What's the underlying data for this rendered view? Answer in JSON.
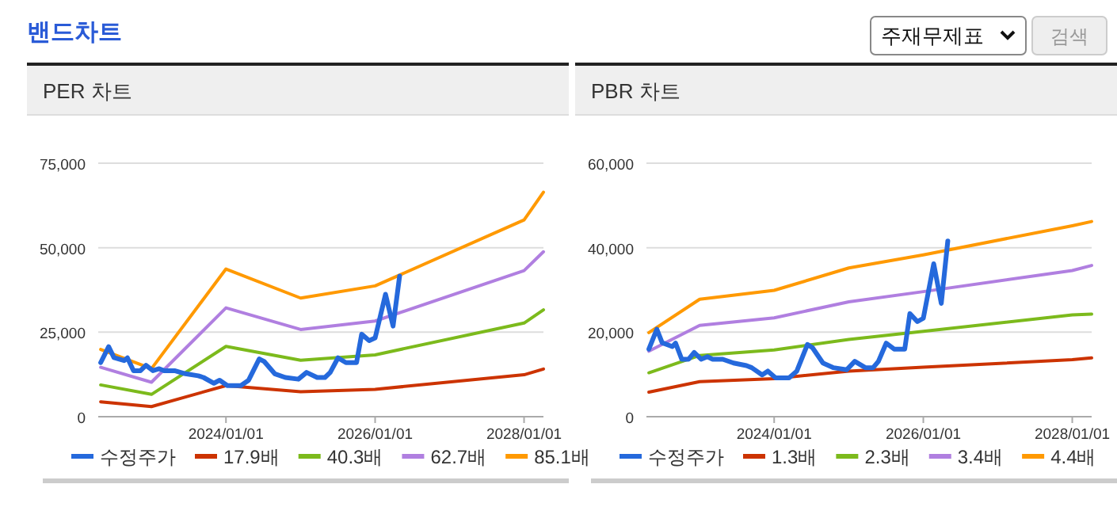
{
  "chart_data": [
    {
      "type": "line",
      "title": "PER 차트",
      "annotations": [
        "밴드차트",
        "주재무제표",
        "검색"
      ],
      "legend": "bottom",
      "grid": "y",
      "xlim": [
        "2022-04-15",
        "2028-04-05"
      ],
      "ylim": [
        0,
        75000
      ],
      "xticks": [
        {
          "value": "2024-01-01",
          "label": "2024/01/01"
        },
        {
          "value": "2026-01-01",
          "label": "2026/01/01"
        },
        {
          "value": "2028-01-01",
          "label": "2028/01/01"
        }
      ],
      "yticks": [
        {
          "value": 0,
          "label": "0"
        },
        {
          "value": 25000,
          "label": "25,000"
        },
        {
          "value": 50000,
          "label": "50,000"
        },
        {
          "value": 75000,
          "label": "75,000"
        }
      ],
      "series": [
        {
          "name": "수정주가",
          "color": "#2569dc",
          "x": [
            "2022-04-27",
            "2022-06-05",
            "2022-07-01",
            "2022-08-20",
            "2022-09-05",
            "2022-10-05",
            "2022-11-08",
            "2022-12-05",
            "2023-01-08",
            "2023-02-08",
            "2023-03-04",
            "2023-04-24",
            "2023-06-16",
            "2023-08-18",
            "2023-09-13",
            "2023-11-03",
            "2023-12-01",
            "2024-01-08",
            "2024-03-14",
            "2024-04-21",
            "2024-06-12",
            "2024-07-07",
            "2024-08-27",
            "2024-10-18",
            "2024-12-21",
            "2025-01-30",
            "2025-03-23",
            "2025-04-30",
            "2025-05-26",
            "2025-07-03",
            "2025-08-11",
            "2025-10-02",
            "2025-10-27",
            "2025-12-03",
            "2026-01-01",
            "2026-02-21",
            "2026-03-30",
            "2026-05-01"
          ],
          "values": [
            16000,
            20700,
            17500,
            16600,
            17400,
            13600,
            13600,
            15200,
            13600,
            14200,
            13600,
            13600,
            12700,
            12100,
            11600,
            9900,
            10800,
            9200,
            9200,
            10800,
            17100,
            16300,
            12700,
            11600,
            11100,
            13100,
            11600,
            11600,
            13100,
            17400,
            16000,
            16000,
            24400,
            22500,
            23300,
            36200,
            26800,
            41600
          ]
        },
        {
          "name": "17.9배",
          "color": "#cc3300",
          "x": [
            "2022-04-27",
            "2023-01-01",
            "2024-01-01",
            "2025-01-01",
            "2026-01-01",
            "2028-01-01",
            "2028-04-05"
          ],
          "values": [
            4400,
            3000,
            9200,
            7400,
            8100,
            12400,
            14100
          ]
        },
        {
          "name": "40.3배",
          "color": "#7cba1c",
          "x": [
            "2022-04-27",
            "2023-01-01",
            "2024-01-01",
            "2025-01-01",
            "2026-01-01",
            "2028-01-01",
            "2028-04-05"
          ],
          "values": [
            9400,
            6600,
            20800,
            16700,
            18300,
            27700,
            31600
          ]
        },
        {
          "name": "62.7배",
          "color": "#b07fe0",
          "x": [
            "2022-04-27",
            "2023-01-01",
            "2024-01-01",
            "2025-01-01",
            "2026-01-01",
            "2028-01-01",
            "2028-04-05"
          ],
          "values": [
            14600,
            10200,
            32200,
            25800,
            28300,
            43200,
            48800
          ]
        },
        {
          "name": "85.1배",
          "color": "#ff9900",
          "x": [
            "2022-04-27",
            "2023-01-01",
            "2024-01-01",
            "2025-01-01",
            "2026-01-01",
            "2028-01-01",
            "2028-04-05"
          ],
          "values": [
            19900,
            14200,
            43700,
            35100,
            38700,
            58200,
            66400
          ]
        }
      ]
    },
    {
      "type": "line",
      "title": "PBR 차트",
      "legend": "bottom",
      "grid": "y",
      "xlim": [
        "2022-04-15",
        "2028-04-05"
      ],
      "ylim": [
        0,
        60000
      ],
      "xticks": [
        {
          "value": "2024-01-01",
          "label": "2024/01/01"
        },
        {
          "value": "2026-01-01",
          "label": "2026/01/01"
        },
        {
          "value": "2028-01-01",
          "label": "2028/01/01"
        }
      ],
      "yticks": [
        {
          "value": 0,
          "label": "0"
        },
        {
          "value": 20000,
          "label": "20,000"
        },
        {
          "value": 40000,
          "label": "40,000"
        },
        {
          "value": 60000,
          "label": "60,000"
        }
      ],
      "series": [
        {
          "name": "수정주가",
          "color": "#2569dc",
          "x": [
            "2022-04-27",
            "2022-06-05",
            "2022-07-01",
            "2022-08-20",
            "2022-09-05",
            "2022-10-05",
            "2022-11-08",
            "2022-12-05",
            "2023-01-08",
            "2023-02-08",
            "2023-03-04",
            "2023-04-24",
            "2023-06-16",
            "2023-08-18",
            "2023-09-13",
            "2023-11-03",
            "2023-12-01",
            "2024-01-08",
            "2024-03-14",
            "2024-04-21",
            "2024-06-12",
            "2024-07-07",
            "2024-08-27",
            "2024-10-18",
            "2024-12-21",
            "2025-01-30",
            "2025-03-23",
            "2025-04-30",
            "2025-05-26",
            "2025-07-03",
            "2025-08-11",
            "2025-10-02",
            "2025-10-27",
            "2025-12-03",
            "2026-01-01",
            "2026-02-21",
            "2026-03-30",
            "2026-05-01"
          ],
          "values": [
            16000,
            20700,
            17500,
            16600,
            17400,
            13600,
            13600,
            15200,
            13600,
            14200,
            13600,
            13600,
            12700,
            12100,
            11600,
            9900,
            10800,
            9200,
            9200,
            10800,
            17100,
            16300,
            12700,
            11600,
            11100,
            13100,
            11600,
            11600,
            13100,
            17400,
            16000,
            16000,
            24400,
            22500,
            23300,
            36200,
            26800,
            41600
          ]
        },
        {
          "name": "1.3배",
          "color": "#cc3300",
          "x": [
            "2022-04-27",
            "2023-01-01",
            "2024-01-01",
            "2025-01-01",
            "2026-01-01",
            "2028-01-01",
            "2028-04-05"
          ],
          "values": [
            5800,
            8300,
            9000,
            10800,
            11700,
            13500,
            13900
          ]
        },
        {
          "name": "2.3배",
          "color": "#7cba1c",
          "x": [
            "2022-04-27",
            "2023-01-01",
            "2024-01-01",
            "2025-01-01",
            "2026-01-01",
            "2028-01-01",
            "2028-04-05"
          ],
          "values": [
            10400,
            14500,
            15800,
            18300,
            20200,
            24100,
            24300
          ]
        },
        {
          "name": "3.4배",
          "color": "#b07fe0",
          "x": [
            "2022-04-27",
            "2023-01-01",
            "2024-01-01",
            "2025-01-01",
            "2026-01-01",
            "2028-01-01",
            "2028-04-05"
          ],
          "values": [
            15500,
            21600,
            23400,
            27200,
            29600,
            34600,
            35800
          ]
        },
        {
          "name": "4.4배",
          "color": "#ff9900",
          "x": [
            "2022-04-27",
            "2023-01-01",
            "2024-01-01",
            "2025-01-01",
            "2026-01-01",
            "2028-01-01",
            "2028-04-05"
          ],
          "values": [
            19900,
            27800,
            29900,
            35200,
            38300,
            45200,
            46200
          ]
        }
      ]
    }
  ]
}
